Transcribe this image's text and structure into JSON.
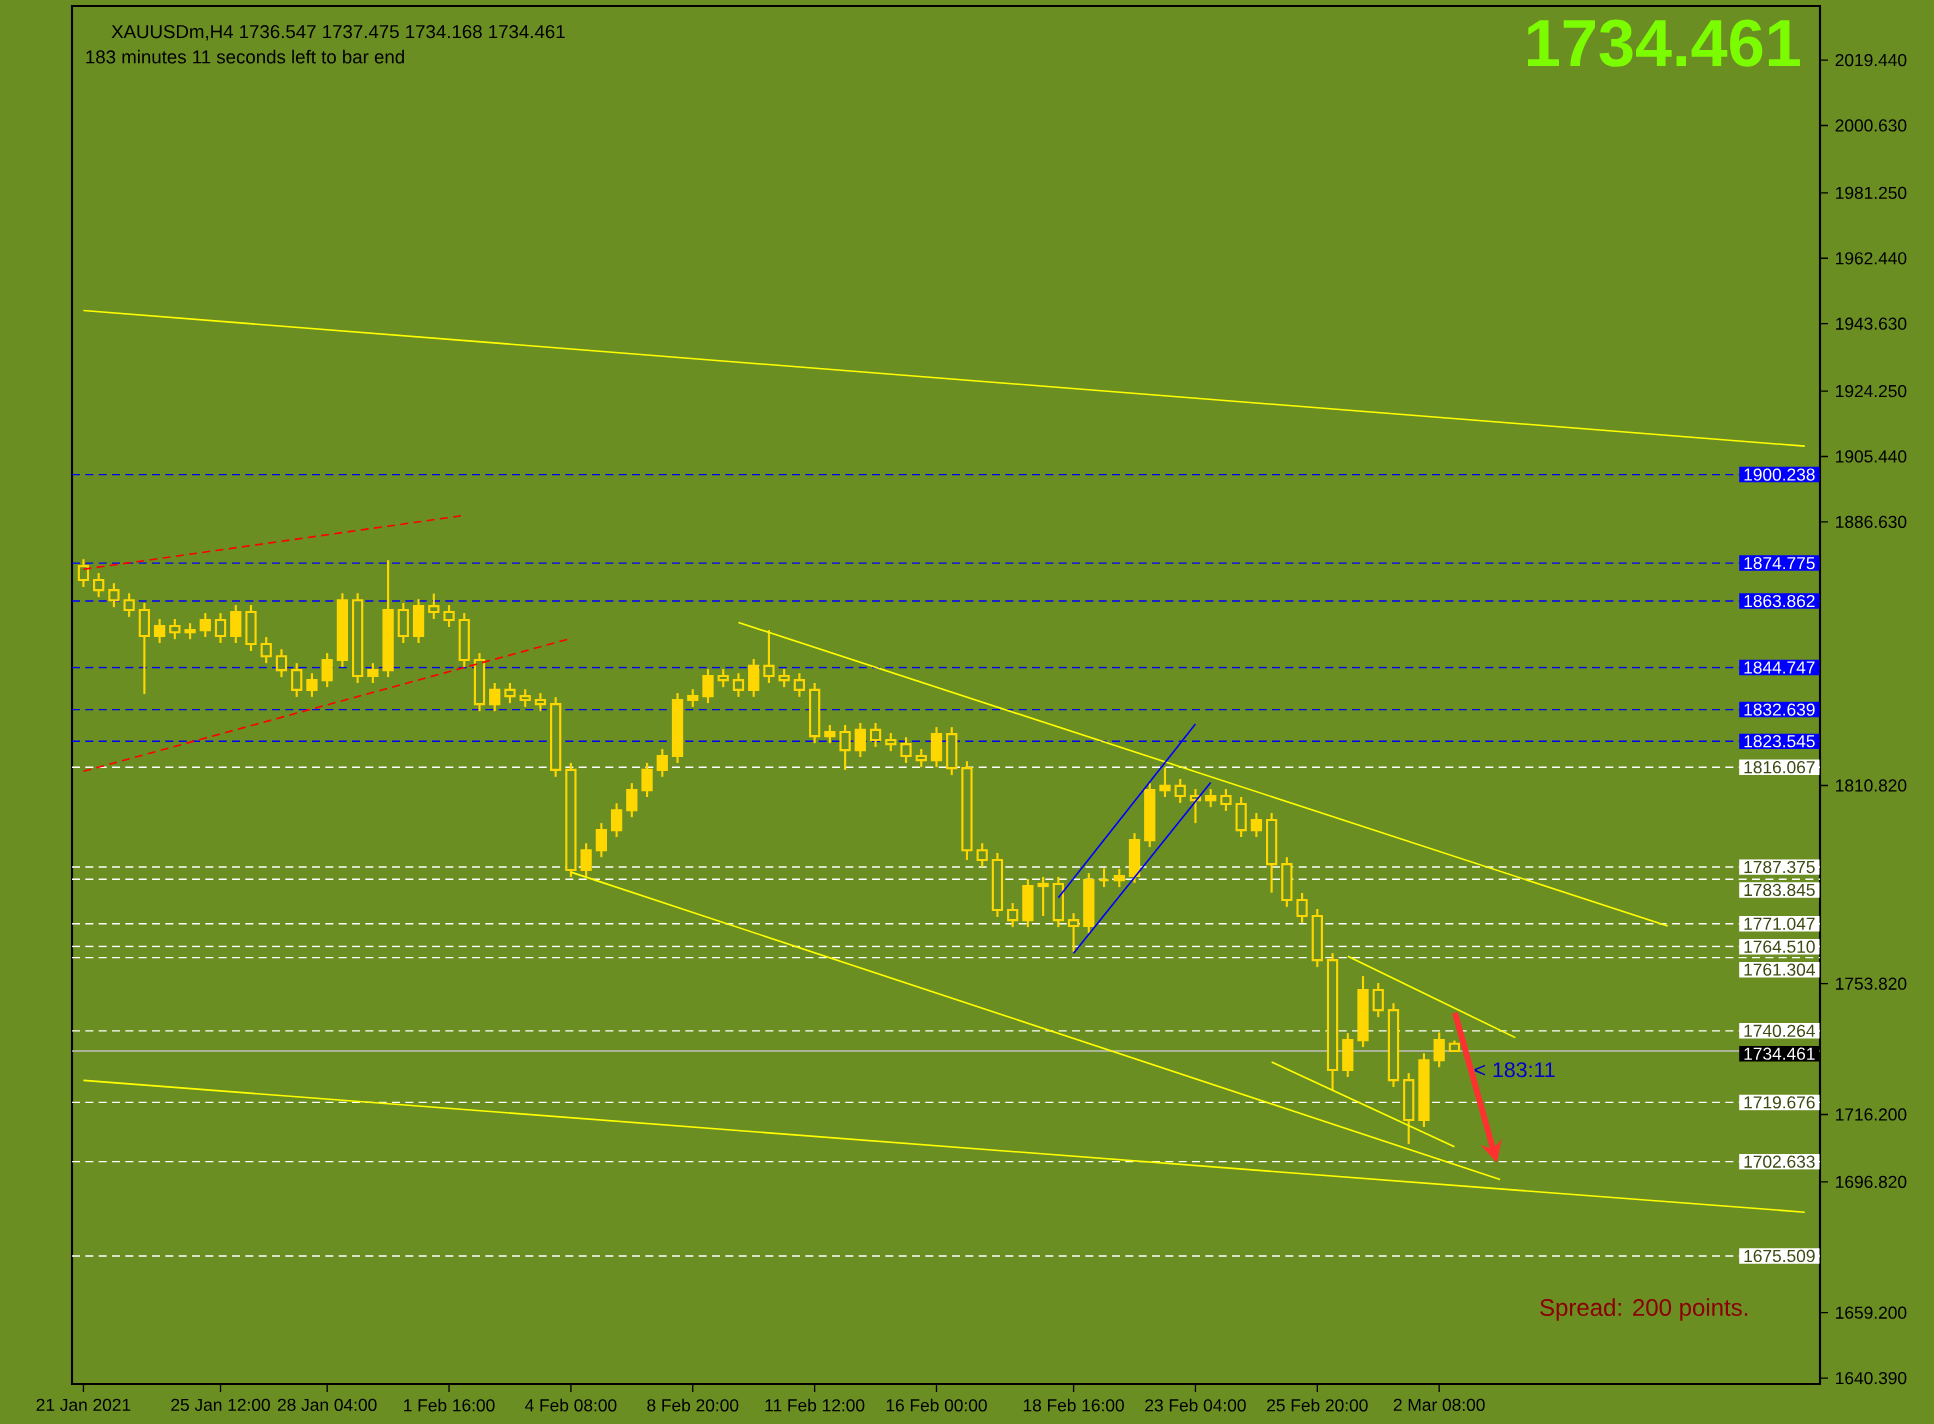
{
  "chart_data": {
    "type": "candlestick",
    "title": "XAUUSDm,H4  1736.547 1737.475 1734.168 1734.461",
    "subtitle": "183 minutes 11 seconds left to bar end",
    "color": "#ffd700",
    "categories": [
      "21 Jan 2021",
      null,
      null,
      null,
      null,
      null,
      null,
      null,
      null,
      "25 Jan 12:00",
      null,
      null,
      null,
      null,
      null,
      null,
      "28 Jan 04:00",
      null,
      null,
      null,
      null,
      null,
      null,
      null,
      "1 Feb 16:00",
      null,
      null,
      null,
      null,
      null,
      null,
      null,
      "4 Feb 08:00",
      null,
      null,
      null,
      null,
      null,
      null,
      null,
      "8 Feb 20:00",
      null,
      null,
      null,
      null,
      null,
      null,
      null,
      "11 Feb 12:00",
      null,
      null,
      null,
      null,
      null,
      null,
      null,
      "16 Feb 00:00",
      null,
      null,
      null,
      null,
      null,
      null,
      null,
      null,
      "18 Feb 16:00",
      null,
      null,
      null,
      null,
      null,
      null,
      null,
      "23 Feb 04:00",
      null,
      null,
      null,
      null,
      null,
      null,
      null,
      "25 Feb 20:00",
      null,
      null,
      null,
      null,
      null,
      null,
      null,
      "2 Mar 08:00",
      null,
      null,
      null,
      null,
      null,
      null,
      null,
      null,
      null,
      null,
      null,
      null,
      null,
      null,
      null,
      null,
      null,
      null,
      null,
      null,
      null,
      null,
      null,
      null
    ],
    "ohlc": [
      [
        1873.9,
        1875.9,
        1867.9,
        1869.9
      ],
      [
        1869.9,
        1871.9,
        1865.0,
        1867.0
      ],
      [
        1867.0,
        1869.0,
        1862.1,
        1864.1
      ],
      [
        1864.1,
        1866.1,
        1859.3,
        1861.3
      ],
      [
        1861.3,
        1863.3,
        1837.1,
        1853.8
      ],
      [
        1853.8,
        1858.7,
        1851.8,
        1856.7
      ],
      [
        1856.7,
        1858.7,
        1852.9,
        1854.9
      ],
      [
        1854.9,
        1857.5,
        1852.9,
        1855.5
      ],
      [
        1855.5,
        1860.4,
        1853.5,
        1858.4
      ],
      [
        1858.4,
        1860.4,
        1851.8,
        1853.8
      ],
      [
        1853.8,
        1862.7,
        1851.8,
        1860.7
      ],
      [
        1860.7,
        1862.7,
        1849.5,
        1851.5
      ],
      [
        1851.5,
        1853.5,
        1846.0,
        1848.0
      ],
      [
        1848.0,
        1850.0,
        1842.0,
        1844.0
      ],
      [
        1844.0,
        1846.0,
        1836.3,
        1838.3
      ],
      [
        1838.3,
        1843.1,
        1836.3,
        1841.1
      ],
      [
        1841.1,
        1848.9,
        1839.1,
        1846.9
      ],
      [
        1846.9,
        1866.1,
        1844.9,
        1864.1
      ],
      [
        1864.1,
        1866.1,
        1840.3,
        1842.3
      ],
      [
        1842.3,
        1846.0,
        1840.3,
        1844.0
      ],
      [
        1844.0,
        1875.6,
        1842.0,
        1861.3
      ],
      [
        1861.3,
        1863.3,
        1851.8,
        1853.8
      ],
      [
        1853.8,
        1864.4,
        1851.8,
        1862.4
      ],
      [
        1862.4,
        1866.0,
        1858.7,
        1860.7
      ],
      [
        1860.7,
        1862.7,
        1856.4,
        1858.4
      ],
      [
        1858.4,
        1860.4,
        1844.9,
        1846.9
      ],
      [
        1846.9,
        1848.9,
        1832.2,
        1834.2
      ],
      [
        1834.2,
        1840.3,
        1832.2,
        1838.3
      ],
      [
        1838.3,
        1840.3,
        1834.5,
        1836.5
      ],
      [
        1836.5,
        1838.5,
        1833.4,
        1835.4
      ],
      [
        1835.4,
        1837.4,
        1832.2,
        1834.2
      ],
      [
        1834.2,
        1836.2,
        1813.3,
        1815.3
      ],
      [
        1815.3,
        1817.3,
        1784.5,
        1786.5
      ],
      [
        1786.5,
        1794.2,
        1784.5,
        1792.2
      ],
      [
        1792.2,
        1800.0,
        1790.2,
        1798.0
      ],
      [
        1798.0,
        1805.7,
        1796.0,
        1803.7
      ],
      [
        1803.7,
        1811.5,
        1801.7,
        1809.5
      ],
      [
        1809.5,
        1817.3,
        1807.5,
        1815.3
      ],
      [
        1815.3,
        1821.3,
        1813.3,
        1819.3
      ],
      [
        1819.3,
        1837.4,
        1817.3,
        1835.4
      ],
      [
        1835.4,
        1838.5,
        1833.4,
        1836.5
      ],
      [
        1836.5,
        1844.3,
        1834.5,
        1842.3
      ],
      [
        1842.3,
        1844.3,
        1839.1,
        1841.1
      ],
      [
        1841.1,
        1843.1,
        1836.3,
        1838.3
      ],
      [
        1838.3,
        1847.2,
        1836.3,
        1845.2
      ],
      [
        1845.2,
        1855.5,
        1840.3,
        1842.3
      ],
      [
        1842.3,
        1844.3,
        1839.1,
        1841.1
      ],
      [
        1841.1,
        1843.1,
        1836.3,
        1838.3
      ],
      [
        1838.3,
        1840.3,
        1823.0,
        1825.0
      ],
      [
        1825.0,
        1828.2,
        1823.0,
        1826.2
      ],
      [
        1826.2,
        1828.2,
        1815.3,
        1821.0
      ],
      [
        1821.0,
        1828.8,
        1819.0,
        1826.8
      ],
      [
        1826.8,
        1828.8,
        1821.9,
        1823.9
      ],
      [
        1823.9,
        1825.9,
        1820.7,
        1822.7
      ],
      [
        1822.7,
        1824.7,
        1817.3,
        1819.3
      ],
      [
        1819.3,
        1821.3,
        1816.1,
        1818.1
      ],
      [
        1818.1,
        1827.6,
        1816.1,
        1825.6
      ],
      [
        1825.6,
        1827.6,
        1813.8,
        1815.8
      ],
      [
        1815.8,
        1817.8,
        1789.4,
        1792.2
      ],
      [
        1792.2,
        1794.2,
        1787.4,
        1789.4
      ],
      [
        1789.4,
        1791.4,
        1773.0,
        1775.0
      ],
      [
        1775.0,
        1777.0,
        1770.1,
        1772.1
      ],
      [
        1772.1,
        1783.9,
        1770.1,
        1781.9
      ],
      [
        1781.9,
        1784.5,
        1773.3,
        1782.5
      ],
      [
        1782.5,
        1784.5,
        1770.1,
        1772.1
      ],
      [
        1772.1,
        1774.1,
        1763.0,
        1770.4
      ],
      [
        1770.4,
        1785.6,
        1768.4,
        1783.6
      ],
      [
        1783.6,
        1787.0,
        1781.6,
        1783.6
      ],
      [
        1783.6,
        1786.8,
        1781.6,
        1784.8
      ],
      [
        1784.8,
        1797.1,
        1782.8,
        1795.1
      ],
      [
        1795.1,
        1811.5,
        1793.1,
        1809.5
      ],
      [
        1809.5,
        1816.0,
        1807.5,
        1810.7
      ],
      [
        1810.7,
        1812.7,
        1805.8,
        1807.8
      ],
      [
        1807.8,
        1809.8,
        1800.0,
        1806.6
      ],
      [
        1806.6,
        1809.8,
        1804.6,
        1807.8
      ],
      [
        1807.8,
        1809.8,
        1803.5,
        1805.5
      ],
      [
        1805.5,
        1807.5,
        1796.0,
        1798.0
      ],
      [
        1798.0,
        1802.9,
        1796.0,
        1800.9
      ],
      [
        1800.9,
        1802.9,
        1780.0,
        1788.2
      ],
      [
        1788.2,
        1790.2,
        1775.9,
        1777.9
      ],
      [
        1777.9,
        1779.9,
        1771.3,
        1773.3
      ],
      [
        1773.3,
        1775.3,
        1758.6,
        1760.6
      ],
      [
        1760.6,
        1762.6,
        1723.2,
        1729.0
      ],
      [
        1729.0,
        1739.6,
        1727.0,
        1737.6
      ],
      [
        1737.6,
        1756.0,
        1735.6,
        1752.0
      ],
      [
        1752.0,
        1754.0,
        1744.2,
        1746.2
      ],
      [
        1746.2,
        1748.2,
        1724.1,
        1726.1
      ],
      [
        1726.1,
        1728.1,
        1707.7,
        1714.6
      ],
      [
        1714.6,
        1733.8,
        1712.6,
        1731.8
      ],
      [
        1731.8,
        1739.8,
        1729.8,
        1737.6
      ],
      [
        1736.547,
        1737.475,
        1734.168,
        1734.461
      ],
      null,
      null,
      null,
      null,
      null,
      null,
      null,
      null,
      null,
      null,
      null,
      null,
      null,
      null,
      null,
      null,
      null,
      null,
      null,
      null,
      null,
      null,
      null
    ],
    "series": [
      {
        "type": "line",
        "color": "#ffff00",
        "line_style": "solid",
        "values": [
          1947.4,
          null,
          null,
          null,
          null,
          null,
          null,
          null,
          null,
          null,
          null,
          null,
          null,
          null,
          null,
          null,
          null,
          null,
          null,
          null,
          null,
          null,
          null,
          null,
          null,
          null,
          null,
          null,
          null,
          null,
          null,
          null,
          null,
          null,
          null,
          null,
          null,
          null,
          null,
          null,
          null,
          null,
          null,
          null,
          null,
          null,
          null,
          null,
          null,
          null,
          null,
          null,
          null,
          null,
          null,
          null,
          null,
          null,
          null,
          null,
          null,
          null,
          null,
          null,
          null,
          null,
          null,
          null,
          null,
          null,
          null,
          null,
          null,
          null,
          null,
          null,
          null,
          null,
          null,
          null,
          null,
          null,
          null,
          null,
          null,
          null,
          null,
          null,
          null,
          null,
          null,
          null,
          null,
          null,
          null,
          null,
          null,
          null,
          null,
          null,
          null,
          null,
          null,
          null,
          null,
          null,
          null,
          null,
          null,
          null,
          null,
          null,
          null,
          1908.4
        ]
      },
      {
        "type": "line",
        "color": "#ffff00",
        "line_style": "solid",
        "values": [
          1726.0,
          null,
          null,
          null,
          null,
          null,
          null,
          null,
          null,
          null,
          null,
          null,
          null,
          null,
          null,
          null,
          null,
          null,
          null,
          null,
          null,
          null,
          null,
          null,
          null,
          null,
          null,
          null,
          null,
          null,
          null,
          null,
          null,
          null,
          null,
          null,
          null,
          null,
          null,
          null,
          null,
          null,
          null,
          null,
          null,
          null,
          null,
          null,
          null,
          null,
          null,
          null,
          null,
          null,
          null,
          null,
          null,
          null,
          null,
          null,
          null,
          null,
          null,
          null,
          null,
          null,
          null,
          null,
          null,
          null,
          null,
          null,
          null,
          null,
          null,
          null,
          null,
          null,
          null,
          null,
          null,
          null,
          null,
          null,
          null,
          null,
          null,
          null,
          null,
          null,
          null,
          null,
          null,
          null,
          null,
          null,
          null,
          null,
          null,
          null,
          null,
          null,
          null,
          null,
          null,
          null,
          null,
          null,
          null,
          null,
          null,
          null,
          null,
          1688.1
        ]
      },
      {
        "type": "line",
        "color": "#ffff00",
        "line_style": "solid",
        "values": [
          null,
          null,
          null,
          null,
          null,
          null,
          null,
          null,
          null,
          null,
          null,
          null,
          null,
          null,
          null,
          null,
          null,
          null,
          null,
          null,
          null,
          null,
          null,
          null,
          null,
          null,
          null,
          null,
          null,
          null,
          null,
          null,
          null,
          null,
          null,
          null,
          null,
          null,
          null,
          null,
          null,
          null,
          null,
          1857.7,
          null,
          null,
          null,
          null,
          null,
          null,
          null,
          null,
          null,
          null,
          null,
          null,
          null,
          null,
          null,
          null,
          null,
          null,
          null,
          null,
          null,
          null,
          null,
          null,
          null,
          null,
          null,
          null,
          null,
          null,
          null,
          null,
          null,
          null,
          null,
          null,
          null,
          null,
          null,
          null,
          null,
          null,
          null,
          null,
          null,
          null,
          null,
          null,
          null,
          null,
          null,
          null,
          null,
          null,
          null,
          null,
          null,
          null,
          null,
          null,
          1770.4,
          null,
          null,
          null,
          null,
          null,
          null,
          null,
          null,
          null
        ]
      },
      {
        "type": "line",
        "color": "#ffff00",
        "line_style": "solid",
        "values": [
          null,
          null,
          null,
          null,
          null,
          null,
          null,
          null,
          null,
          null,
          null,
          null,
          null,
          null,
          null,
          null,
          null,
          null,
          null,
          null,
          null,
          null,
          null,
          null,
          null,
          null,
          null,
          null,
          null,
          null,
          null,
          null,
          1785.9,
          null,
          null,
          null,
          null,
          null,
          null,
          null,
          null,
          null,
          null,
          null,
          null,
          null,
          null,
          null,
          null,
          null,
          null,
          null,
          null,
          null,
          null,
          null,
          null,
          null,
          null,
          null,
          null,
          null,
          null,
          null,
          null,
          null,
          null,
          null,
          null,
          null,
          null,
          null,
          null,
          null,
          null,
          null,
          null,
          null,
          null,
          null,
          null,
          null,
          null,
          null,
          null,
          null,
          null,
          null,
          null,
          null,
          null,
          null,
          null,
          1697.5,
          null,
          null,
          null,
          null,
          null,
          null,
          null,
          null,
          null,
          null,
          null,
          null,
          null,
          null,
          null,
          null,
          null,
          null,
          null,
          null
        ]
      },
      {
        "type": "line",
        "color": "#ffff00",
        "line_style": "solid",
        "values": [
          null,
          null,
          null,
          null,
          null,
          null,
          null,
          null,
          null,
          null,
          null,
          null,
          null,
          null,
          null,
          null,
          null,
          null,
          null,
          null,
          null,
          null,
          null,
          null,
          null,
          null,
          null,
          null,
          null,
          null,
          null,
          null,
          null,
          null,
          null,
          null,
          null,
          null,
          null,
          null,
          null,
          null,
          null,
          null,
          null,
          null,
          null,
          null,
          null,
          null,
          null,
          null,
          null,
          null,
          null,
          null,
          null,
          null,
          null,
          null,
          null,
          null,
          null,
          null,
          null,
          null,
          null,
          null,
          null,
          null,
          null,
          null,
          null,
          null,
          null,
          null,
          null,
          null,
          null,
          null,
          null,
          null,
          null,
          1761.7,
          null,
          null,
          null,
          null,
          null,
          null,
          null,
          null,
          null,
          null,
          1738.3,
          null,
          null,
          null,
          null,
          null,
          null,
          null,
          null,
          null,
          null,
          null,
          null,
          null,
          null,
          null,
          null,
          null,
          null,
          null
        ]
      },
      {
        "type": "line",
        "color": "#ffff00",
        "line_style": "solid",
        "values": [
          null,
          null,
          null,
          null,
          null,
          null,
          null,
          null,
          null,
          null,
          null,
          null,
          null,
          null,
          null,
          null,
          null,
          null,
          null,
          null,
          null,
          null,
          null,
          null,
          null,
          null,
          null,
          null,
          null,
          null,
          null,
          null,
          null,
          null,
          null,
          null,
          null,
          null,
          null,
          null,
          null,
          null,
          null,
          null,
          null,
          null,
          null,
          null,
          null,
          null,
          null,
          null,
          null,
          null,
          null,
          null,
          null,
          null,
          null,
          null,
          null,
          null,
          null,
          null,
          null,
          null,
          null,
          null,
          null,
          null,
          null,
          null,
          null,
          null,
          null,
          null,
          null,
          null,
          1731.3,
          null,
          null,
          null,
          null,
          null,
          null,
          null,
          null,
          null,
          null,
          null,
          1706.9,
          null,
          null,
          null,
          null,
          null,
          null,
          null,
          null,
          null,
          null,
          null,
          null,
          null,
          null,
          null,
          null,
          null,
          null,
          null,
          null,
          null,
          null,
          null
        ]
      },
      {
        "type": "line",
        "color": "#0000ff",
        "line_style": "solid",
        "values": [
          null,
          null,
          null,
          null,
          null,
          null,
          null,
          null,
          null,
          null,
          null,
          null,
          null,
          null,
          null,
          null,
          null,
          null,
          null,
          null,
          null,
          null,
          null,
          null,
          null,
          null,
          null,
          null,
          null,
          null,
          null,
          null,
          null,
          null,
          null,
          null,
          null,
          null,
          null,
          null,
          null,
          null,
          null,
          null,
          null,
          null,
          null,
          null,
          null,
          null,
          null,
          null,
          null,
          null,
          null,
          null,
          null,
          null,
          null,
          null,
          null,
          null,
          null,
          null,
          1778.5,
          null,
          null,
          null,
          null,
          null,
          null,
          null,
          null,
          1828.5,
          null,
          null,
          null,
          null,
          null,
          null,
          null,
          null,
          null,
          null,
          null,
          null,
          null,
          null,
          null,
          null,
          null,
          null,
          null,
          null,
          null,
          null,
          null,
          null,
          null,
          null,
          null,
          null,
          null,
          null,
          null,
          null,
          null,
          null,
          null,
          null,
          null,
          null,
          null,
          null
        ]
      },
      {
        "type": "line",
        "color": "#0000ff",
        "line_style": "solid",
        "values": [
          null,
          null,
          null,
          null,
          null,
          null,
          null,
          null,
          null,
          null,
          null,
          null,
          null,
          null,
          null,
          null,
          null,
          null,
          null,
          null,
          null,
          null,
          null,
          null,
          null,
          null,
          null,
          null,
          null,
          null,
          null,
          null,
          null,
          null,
          null,
          null,
          null,
          null,
          null,
          null,
          null,
          null,
          null,
          null,
          null,
          null,
          null,
          null,
          null,
          null,
          null,
          null,
          null,
          null,
          null,
          null,
          null,
          null,
          null,
          null,
          null,
          null,
          null,
          null,
          null,
          1762.6,
          null,
          null,
          null,
          null,
          null,
          null,
          null,
          null,
          1811.7,
          null,
          null,
          null,
          null,
          null,
          null,
          null,
          null,
          null,
          null,
          null,
          null,
          null,
          null,
          null,
          null,
          null,
          null,
          null,
          null,
          null,
          null,
          null,
          null,
          null,
          null,
          null,
          null,
          null,
          null,
          null,
          null,
          null,
          null,
          null,
          null,
          null,
          null,
          null
        ]
      },
      {
        "type": "line",
        "color": "#ff0000",
        "line_style": "dashed",
        "values": [
          1873.0,
          null,
          null,
          null,
          null,
          null,
          null,
          null,
          null,
          null,
          null,
          null,
          null,
          null,
          null,
          null,
          null,
          null,
          null,
          null,
          null,
          null,
          null,
          null,
          null,
          1888.5,
          null,
          null,
          null,
          null,
          null,
          null,
          null,
          null,
          null,
          null,
          null,
          null,
          null,
          null,
          null,
          null,
          null,
          null,
          null,
          null,
          null,
          null,
          null,
          null,
          null,
          null,
          null,
          null,
          null,
          null,
          null,
          null,
          null,
          null,
          null,
          null,
          null,
          null,
          null,
          null,
          null,
          null,
          null,
          null,
          null,
          null,
          null,
          null,
          null,
          null,
          null,
          null,
          null,
          null,
          null,
          null,
          null,
          null,
          null,
          null,
          null,
          null,
          null,
          null,
          null,
          null,
          null,
          null,
          null,
          null,
          null,
          null,
          null,
          null,
          null,
          null,
          null,
          null,
          null,
          null,
          null,
          null,
          null,
          null,
          null,
          null,
          null,
          null
        ]
      },
      {
        "type": "line",
        "color": "#ff0000",
        "line_style": "dashed",
        "values": [
          1814.9,
          null,
          null,
          null,
          null,
          null,
          null,
          null,
          null,
          null,
          null,
          null,
          null,
          null,
          null,
          null,
          null,
          null,
          null,
          null,
          null,
          null,
          null,
          null,
          null,
          null,
          null,
          null,
          null,
          null,
          null,
          null,
          1853.1,
          null,
          null,
          null,
          null,
          null,
          null,
          null,
          null,
          null,
          null,
          null,
          null,
          null,
          null,
          null,
          null,
          null,
          null,
          null,
          null,
          null,
          null,
          null,
          null,
          null,
          null,
          null,
          null,
          null,
          null,
          null,
          null,
          null,
          null,
          null,
          null,
          null,
          null,
          null,
          null,
          null,
          null,
          null,
          null,
          null,
          null,
          null,
          null,
          null,
          null,
          null,
          null,
          null,
          null,
          null,
          null,
          null,
          null,
          null,
          null,
          null,
          null,
          null,
          null,
          null,
          null,
          null,
          null,
          null,
          null,
          null,
          null,
          null,
          null,
          null,
          null,
          null,
          null,
          null,
          null,
          null
        ]
      }
    ],
    "ylim": [
      1638.7,
      2035.0
    ],
    "yticks": [
      {
        "value": 2019.44,
        "label": "2019.440"
      },
      {
        "value": 2000.63,
        "label": "2000.630"
      },
      {
        "value": 1981.25,
        "label": "1981.250"
      },
      {
        "value": 1962.44,
        "label": "1962.440"
      },
      {
        "value": 1943.63,
        "label": "1943.630"
      },
      {
        "value": 1924.25,
        "label": "1924.250"
      },
      {
        "value": 1905.44,
        "label": "1905.440"
      },
      {
        "value": 1886.63,
        "label": "1886.630"
      },
      {
        "value": 1810.82,
        "label": "1810.820"
      },
      {
        "value": 1753.82,
        "label": "1753.820"
      },
      {
        "value": 1716.2,
        "label": "1716.200"
      },
      {
        "value": 1696.82,
        "label": "1696.820"
      },
      {
        "value": 1659.2,
        "label": "1659.200"
      },
      {
        "value": 1640.39,
        "label": "1640.390"
      }
    ],
    "ref_lines": [
      {
        "axis": "y",
        "value": 1900.238,
        "label": "1900.238",
        "color": "#0000ff",
        "line_style": "dashed"
      },
      {
        "axis": "y",
        "value": 1874.775,
        "label": "1874.775",
        "color": "#0000ff",
        "line_style": "dashed"
      },
      {
        "axis": "y",
        "value": 1863.862,
        "label": "1863.862",
        "color": "#0000ff",
        "line_style": "dashed"
      },
      {
        "axis": "y",
        "value": 1844.747,
        "label": "1844.747",
        "color": "#0000ff",
        "line_style": "dashed"
      },
      {
        "axis": "y",
        "value": 1832.639,
        "label": "1832.639",
        "color": "#0000ff",
        "line_style": "dashed"
      },
      {
        "axis": "y",
        "value": 1823.545,
        "label": "1823.545",
        "color": "#0000ff",
        "line_style": "dashed"
      },
      {
        "axis": "y",
        "value": 1816.067,
        "label": "1816.067",
        "color": "#ffffff",
        "line_style": "dashed"
      },
      {
        "axis": "y",
        "value": 1787.375,
        "label": "1787.375",
        "color": "#ffffff",
        "line_style": "dashed"
      },
      {
        "axis": "y",
        "value": 1783.845,
        "label": "1783.845",
        "color": "#ffffff",
        "line_style": "dashed"
      },
      {
        "axis": "y",
        "value": 1771.047,
        "label": "1771.047",
        "color": "#ffffff",
        "line_style": "dashed"
      },
      {
        "axis": "y",
        "value": 1764.51,
        "label": "1764.510",
        "color": "#ffffff",
        "line_style": "dashed"
      },
      {
        "axis": "y",
        "value": 1761.304,
        "label": "1761.304",
        "color": "#ffffff",
        "line_style": "dashed"
      },
      {
        "axis": "y",
        "value": 1740.264,
        "label": "1740.264",
        "color": "#ffffff",
        "line_style": "dashed"
      },
      {
        "axis": "y",
        "value": 1734.461,
        "label": "1734.461",
        "color": "#c0c0c0",
        "line_style": "solid"
      },
      {
        "axis": "y",
        "value": 1719.676,
        "label": "1719.676",
        "color": "#ffffff",
        "line_style": "dashed"
      },
      {
        "axis": "y",
        "value": 1702.633,
        "label": "1702.633",
        "color": "#ffffff",
        "line_style": "dashed"
      },
      {
        "axis": "y",
        "value": 1675.509,
        "label": "1675.509",
        "color": "#ffffff",
        "line_style": "dashed"
      }
    ],
    "annotations": [
      "1734.461",
      {
        "text": "< 183:11",
        "y": 1734.461
      },
      "Spread: 200 points."
    ]
  }
}
